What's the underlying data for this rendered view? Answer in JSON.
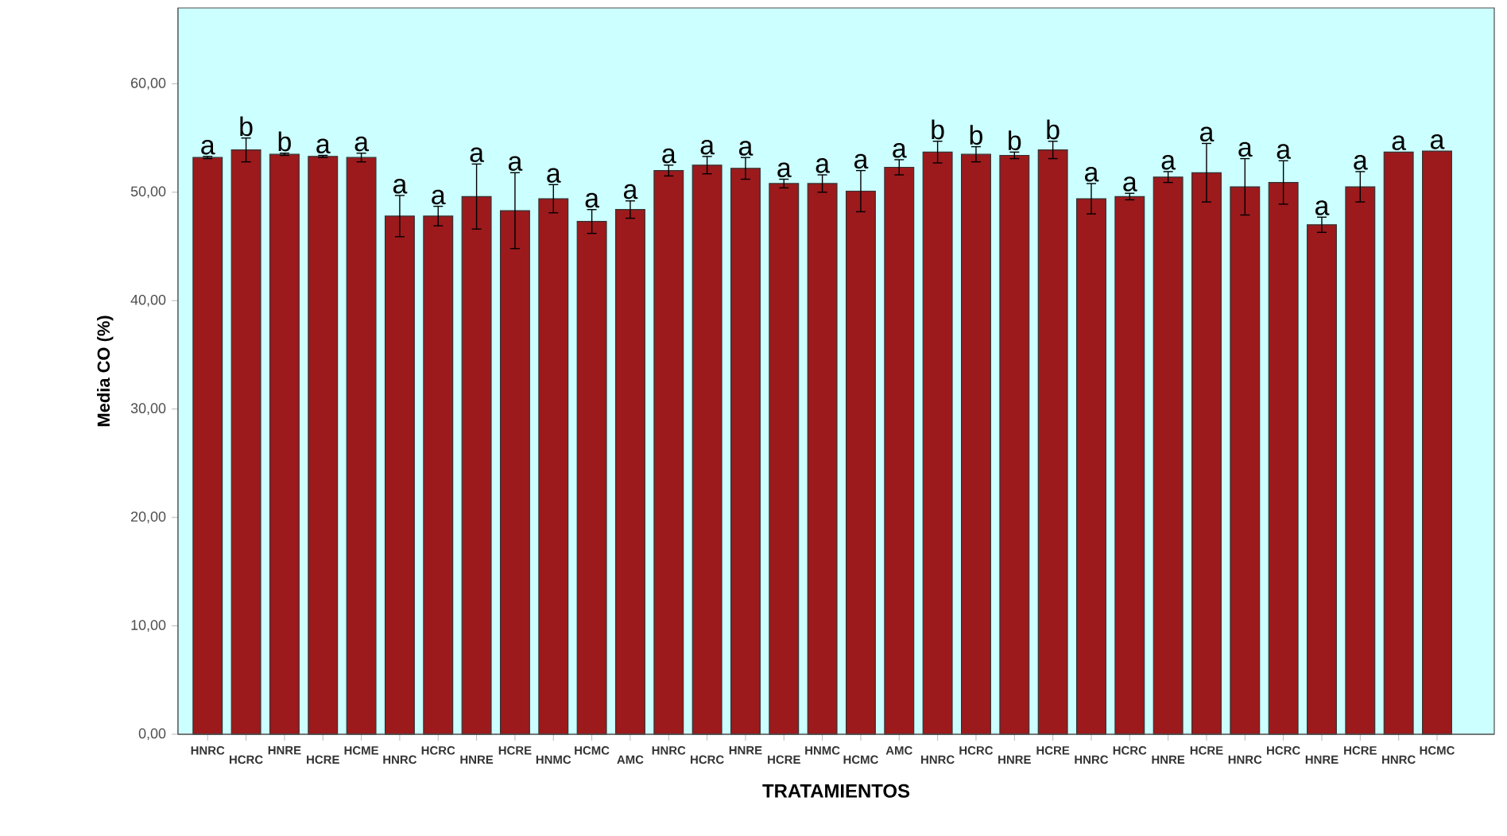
{
  "chart_data": {
    "type": "bar",
    "xlabel": "TRATAMIENTOS",
    "ylabel": "Media CO (%)",
    "categories": [
      "HNRC",
      "HCRC",
      "HNRE",
      "HCRE",
      "HCME",
      "HNRC",
      "HCRC",
      "HNRE",
      "HCRE",
      "HNMC",
      "HCMC",
      "AMC",
      "HNRC",
      "HCRC",
      "HNRE",
      "HCRE",
      "HNMC",
      "HCMC",
      "AMC",
      "HNRC",
      "HCRC",
      "HNRE",
      "HCRE",
      "HNRC",
      "HCRC",
      "HNRE",
      "HCRE",
      "HNRC",
      "HCRC",
      "HNRE",
      "HCRE",
      "HNRC",
      "HCMC"
    ],
    "values": [
      53.2,
      53.9,
      53.5,
      53.3,
      53.2,
      47.8,
      47.8,
      49.6,
      48.3,
      49.4,
      47.3,
      48.4,
      52.0,
      52.5,
      52.2,
      50.8,
      50.8,
      50.1,
      52.3,
      53.7,
      53.5,
      53.4,
      53.9,
      49.4,
      49.6,
      51.4,
      51.8,
      50.5,
      50.9,
      47.0,
      50.5,
      53.7,
      53.8
    ],
    "errors": [
      0.1,
      1.1,
      0.1,
      0.1,
      0.4,
      1.9,
      0.9,
      3.0,
      3.5,
      1.3,
      1.1,
      0.8,
      0.5,
      0.8,
      1.0,
      0.4,
      0.8,
      1.9,
      0.7,
      1.0,
      0.7,
      0.3,
      0.8,
      1.4,
      0.3,
      0.5,
      2.7,
      2.6,
      2.0,
      0.7,
      1.4,
      null,
      null
    ],
    "value_labels": [
      "a",
      "b",
      "b",
      "a",
      "a",
      "a",
      "a",
      "a",
      "a",
      "a",
      "a",
      "a",
      "a",
      "a",
      "a",
      "a",
      "a",
      "a",
      "a",
      "b",
      "b",
      "b",
      "b",
      "a",
      "a",
      "a",
      "a",
      "a",
      "a",
      "a",
      "a",
      "a",
      "a"
    ],
    "color": "#9c1a1c",
    "bands": [
      {
        "axis": "y",
        "from": 0,
        "to": 67,
        "color": "#ccffff"
      }
    ],
    "ylim": [
      0,
      67
    ],
    "yticks": [
      {
        "value": 0,
        "label": "0,00"
      },
      {
        "value": 10,
        "label": "10,00"
      },
      {
        "value": 20,
        "label": "20,00"
      },
      {
        "value": 30,
        "label": "30,00"
      },
      {
        "value": 40,
        "label": "40,00"
      },
      {
        "value": 50,
        "label": "50,00"
      },
      {
        "value": 60,
        "label": "60,00"
      }
    ]
  }
}
